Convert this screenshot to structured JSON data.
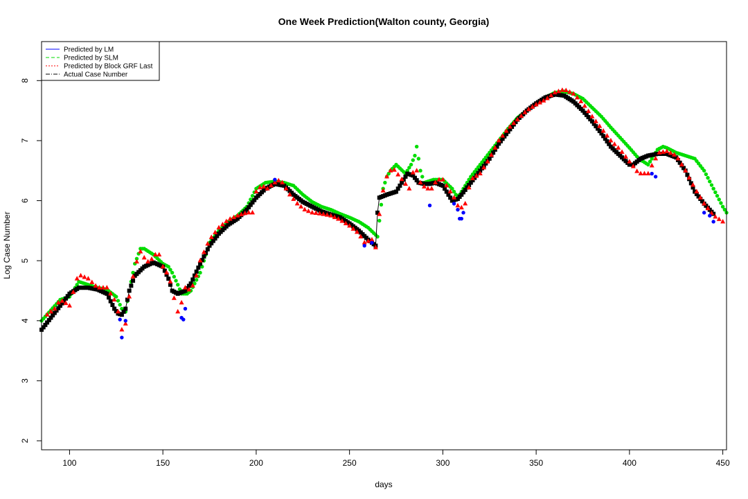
{
  "chart_data": {
    "type": "scatter",
    "title": "One Week Prediction(Walton county, Georgia)",
    "xlabel": "days",
    "ylabel": "Log Case Number",
    "xlim": [
      85,
      452
    ],
    "ylim": [
      1.85,
      8.65
    ],
    "x_ticks": [
      100,
      150,
      200,
      250,
      300,
      350,
      400,
      450
    ],
    "y_ticks": [
      2,
      3,
      4,
      5,
      6,
      7,
      8
    ],
    "grid": false,
    "legend_position": "top-left",
    "legend": [
      {
        "label": "Predicted by LM",
        "color": "#0000ff",
        "line": "solid"
      },
      {
        "label": "Predicted by SLM",
        "color": "#00dd00",
        "line": "dashed"
      },
      {
        "label": "Predicted by Block GRF Last",
        "color": "#ff0000",
        "line": "dotted"
      },
      {
        "label": "Actual Case Number",
        "color": "#000000",
        "line": "dashdot"
      }
    ],
    "series": [
      {
        "name": "Actual Case Number",
        "color": "#000000",
        "marker": "square",
        "x": [
          85,
          95,
          100,
          105,
          110,
          115,
          120,
          124,
          126,
          128,
          130,
          132,
          135,
          140,
          145,
          150,
          153,
          155,
          158,
          162,
          165,
          170,
          175,
          180,
          185,
          190,
          195,
          200,
          205,
          210,
          215,
          220,
          225,
          230,
          235,
          240,
          245,
          250,
          255,
          260,
          264,
          265,
          266,
          270,
          275,
          278,
          281,
          284,
          287,
          290,
          293,
          296,
          300,
          303,
          305,
          308,
          310,
          315,
          320,
          325,
          330,
          335,
          340,
          345,
          350,
          355,
          360,
          365,
          370,
          375,
          380,
          385,
          390,
          395,
          400,
          402,
          404,
          406,
          410,
          415,
          420,
          425,
          430,
          435,
          440,
          445
        ],
        "y": [
          3.85,
          4.25,
          4.45,
          4.55,
          4.55,
          4.52,
          4.45,
          4.2,
          4.12,
          4.1,
          4.2,
          4.5,
          4.75,
          4.9,
          4.97,
          4.9,
          4.7,
          4.5,
          4.45,
          4.5,
          4.62,
          4.95,
          5.25,
          5.45,
          5.6,
          5.7,
          5.85,
          6.05,
          6.2,
          6.28,
          6.25,
          6.1,
          5.98,
          5.9,
          5.82,
          5.77,
          5.72,
          5.62,
          5.5,
          5.35,
          5.25,
          5.8,
          6.05,
          6.1,
          6.15,
          6.3,
          6.45,
          6.42,
          6.3,
          6.28,
          6.28,
          6.3,
          6.25,
          6.1,
          6.0,
          6.03,
          6.1,
          6.3,
          6.5,
          6.7,
          6.95,
          7.15,
          7.35,
          7.5,
          7.62,
          7.72,
          7.77,
          7.75,
          7.65,
          7.5,
          7.32,
          7.12,
          6.9,
          6.75,
          6.6,
          6.6,
          6.65,
          6.7,
          6.75,
          6.78,
          6.78,
          6.72,
          6.5,
          6.15,
          5.95,
          5.78
        ]
      },
      {
        "name": "Predicted by SLM",
        "color": "#00dd00",
        "marker": "circle",
        "x": [
          85,
          95,
          100,
          105,
          110,
          115,
          120,
          125,
          128,
          130,
          132,
          135,
          138,
          140,
          145,
          150,
          153,
          155,
          158,
          160,
          163,
          165,
          170,
          175,
          180,
          185,
          190,
          195,
          200,
          205,
          210,
          215,
          220,
          225,
          230,
          235,
          240,
          245,
          250,
          255,
          260,
          265,
          268,
          270,
          272,
          275,
          280,
          283,
          285,
          286,
          288,
          290,
          295,
          300,
          305,
          308,
          310,
          315,
          320,
          325,
          330,
          335,
          340,
          345,
          350,
          355,
          360,
          365,
          370,
          375,
          380,
          385,
          390,
          395,
          400,
          405,
          410,
          415,
          418,
          420,
          425,
          430,
          435,
          440,
          445,
          450,
          452
        ],
        "y": [
          4.0,
          4.35,
          4.4,
          4.65,
          4.6,
          4.55,
          4.52,
          4.4,
          4.2,
          4.15,
          4.5,
          4.95,
          5.2,
          5.2,
          5.1,
          4.95,
          4.9,
          4.8,
          4.6,
          4.45,
          4.45,
          4.5,
          4.8,
          5.3,
          5.5,
          5.65,
          5.75,
          5.9,
          6.2,
          6.3,
          6.32,
          6.3,
          6.25,
          6.1,
          5.98,
          5.9,
          5.85,
          5.78,
          5.72,
          5.65,
          5.55,
          5.4,
          6.2,
          6.4,
          6.5,
          6.6,
          6.45,
          6.6,
          6.75,
          6.9,
          6.5,
          6.3,
          6.35,
          6.35,
          6.2,
          6.05,
          6.15,
          6.4,
          6.6,
          6.8,
          7.0,
          7.2,
          7.38,
          7.5,
          7.62,
          7.72,
          7.8,
          7.82,
          7.78,
          7.7,
          7.55,
          7.4,
          7.22,
          7.05,
          6.88,
          6.7,
          6.6,
          6.85,
          6.9,
          6.88,
          6.8,
          6.75,
          6.7,
          6.5,
          6.2,
          5.9,
          5.8
        ]
      },
      {
        "name": "Predicted by LM",
        "color": "#0000ff",
        "marker": "circle",
        "x": [
          127,
          128,
          130,
          160,
          161,
          162,
          210,
          258,
          262,
          293,
          306,
          308,
          309,
          310,
          311,
          412,
          414,
          440,
          443,
          445
        ],
        "y": [
          4.02,
          3.72,
          4.0,
          4.05,
          4.02,
          4.2,
          6.35,
          5.25,
          5.3,
          5.92,
          5.95,
          5.85,
          5.7,
          5.7,
          5.8,
          6.45,
          6.4,
          5.8,
          5.75,
          5.65
        ]
      },
      {
        "name": "Predicted by Block GRF Last",
        "color": "#ff0000",
        "marker": "triangle",
        "x": [
          88,
          92,
          95,
          100,
          104,
          106,
          110,
          115,
          120,
          122,
          125,
          127,
          128,
          130,
          132,
          135,
          138,
          140,
          143,
          145,
          148,
          150,
          153,
          155,
          157,
          159,
          160,
          162,
          165,
          168,
          170,
          175,
          180,
          185,
          190,
          195,
          198,
          200,
          203,
          206,
          210,
          213,
          215,
          218,
          222,
          226,
          230,
          235,
          240,
          245,
          250,
          255,
          258,
          262,
          264,
          267,
          270,
          273,
          282,
          285,
          288,
          291,
          294,
          297,
          300,
          303,
          306,
          309,
          312,
          315,
          320,
          325,
          330,
          335,
          340,
          345,
          350,
          355,
          360,
          365,
          370,
          375,
          380,
          385,
          390,
          395,
          400,
          405,
          410,
          413,
          416,
          420,
          425,
          430,
          435,
          440,
          445,
          450
        ],
        "y": [
          4.1,
          4.2,
          4.35,
          4.25,
          4.7,
          4.75,
          4.7,
          4.55,
          4.55,
          4.45,
          4.3,
          4.0,
          3.85,
          3.95,
          4.4,
          4.9,
          5.15,
          5.05,
          4.95,
          5.1,
          5.1,
          4.9,
          4.75,
          4.55,
          4.2,
          4.1,
          4.3,
          4.55,
          4.5,
          4.75,
          5.0,
          5.35,
          5.55,
          5.68,
          5.75,
          5.8,
          5.8,
          6.15,
          6.25,
          6.2,
          6.3,
          6.35,
          6.25,
          6.1,
          5.95,
          5.85,
          5.8,
          5.78,
          5.75,
          5.68,
          5.58,
          5.45,
          5.3,
          5.35,
          5.22,
          6.05,
          6.4,
          6.55,
          6.2,
          6.6,
          6.3,
          6.2,
          6.2,
          6.35,
          6.35,
          6.2,
          6.05,
          5.85,
          5.95,
          6.35,
          6.45,
          6.7,
          7.0,
          7.2,
          7.35,
          7.5,
          7.6,
          7.68,
          7.8,
          7.85,
          7.78,
          7.62,
          7.4,
          7.2,
          7.0,
          6.85,
          6.65,
          6.45,
          6.45,
          6.65,
          6.8,
          6.82,
          6.75,
          6.5,
          6.2,
          5.95,
          5.75,
          5.65
        ]
      }
    ]
  }
}
